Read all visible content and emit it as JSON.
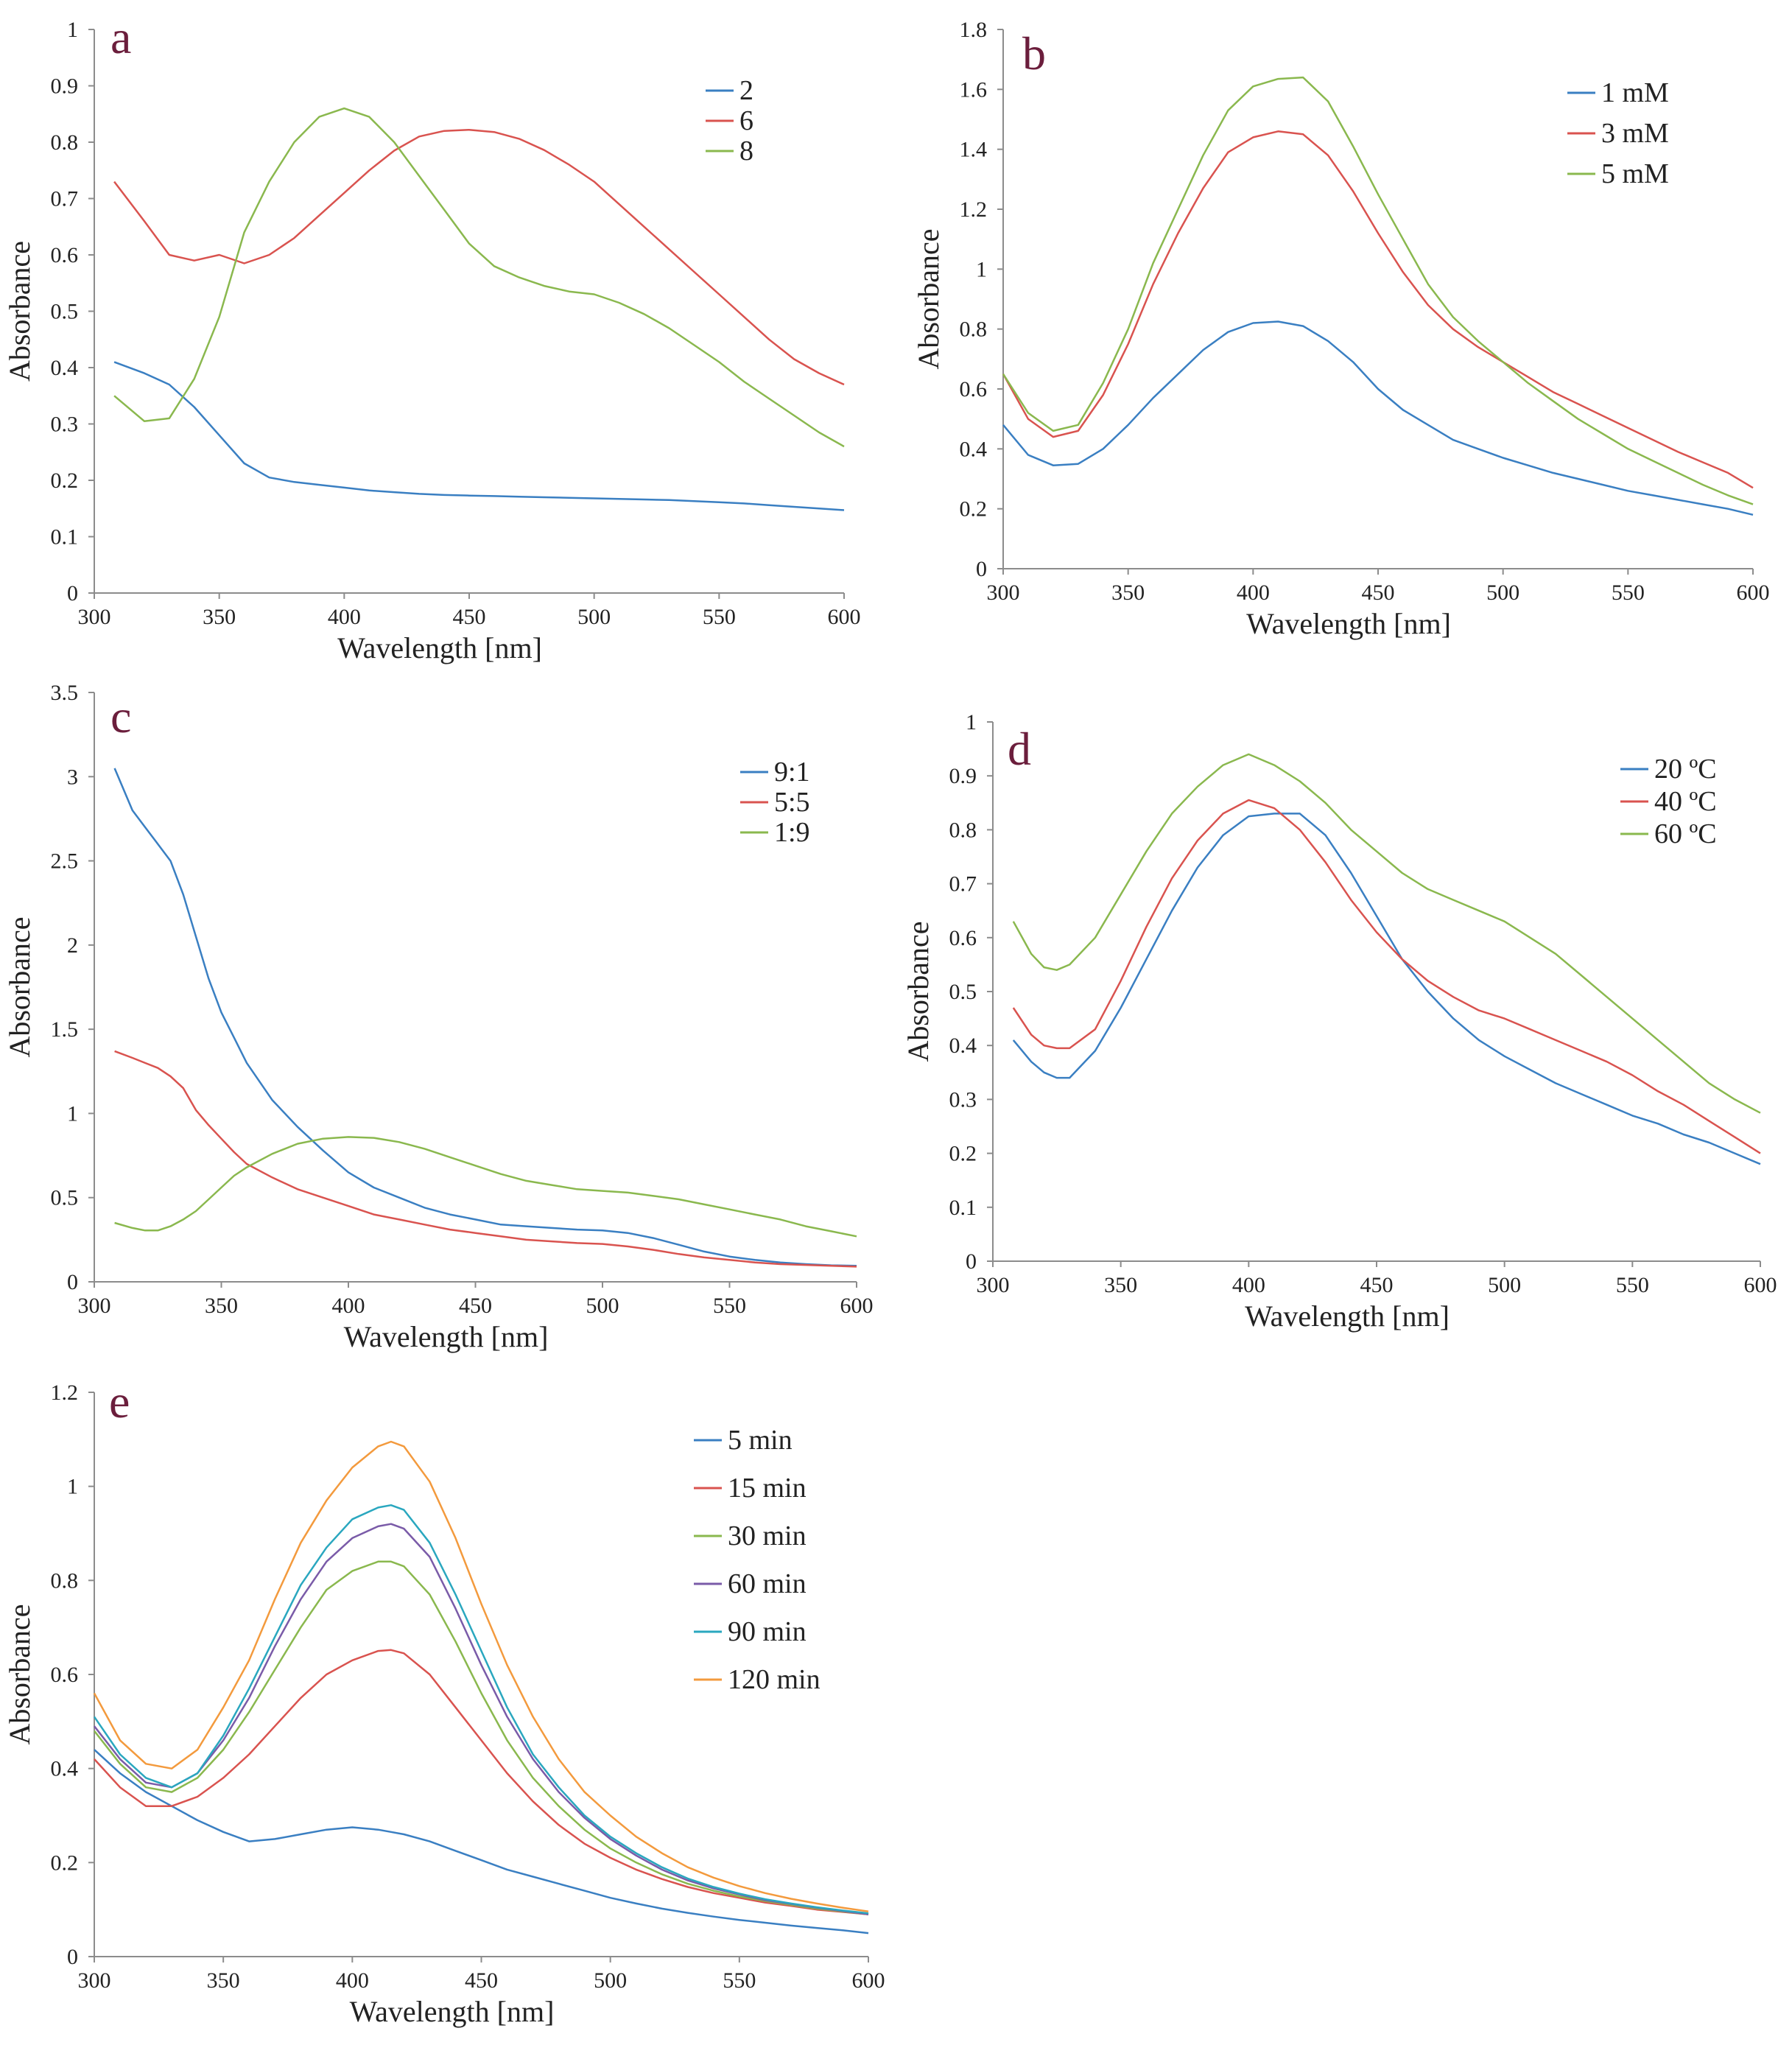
{
  "chart_data": [
    {
      "panel_label": "a",
      "type": "line",
      "xlabel": "Wavelength [nm]",
      "ylabel": "Absorbance",
      "xlim": [
        300,
        600
      ],
      "ylim": [
        0,
        1
      ],
      "xticks": [
        300,
        350,
        400,
        450,
        500,
        550,
        600
      ],
      "yticks": [
        0,
        0.1,
        0.2,
        0.3,
        0.4,
        0.5,
        0.6,
        0.7,
        0.8,
        0.9,
        1
      ],
      "ytick_labels": [
        "0",
        "0.1",
        "0.2",
        "0.3",
        "0.4",
        "0.5",
        "0.6",
        "0.7",
        "0.8",
        "0.9",
        "1"
      ],
      "x": [
        308,
        320,
        330,
        340,
        350,
        360,
        370,
        380,
        390,
        400,
        410,
        420,
        430,
        440,
        450,
        460,
        470,
        480,
        490,
        500,
        510,
        520,
        530,
        540,
        550,
        560,
        570,
        580,
        590,
        600
      ],
      "series": [
        {
          "name": "2",
          "color": "#3a7fc2",
          "values": [
            0.41,
            0.39,
            0.37,
            0.33,
            0.28,
            0.23,
            0.205,
            0.197,
            0.192,
            0.187,
            0.182,
            0.179,
            0.176,
            0.174,
            0.173,
            0.172,
            0.171,
            0.17,
            0.169,
            0.168,
            0.167,
            0.166,
            0.165,
            0.163,
            0.161,
            0.159,
            0.156,
            0.153,
            0.15,
            0.147
          ]
        },
        {
          "name": "6",
          "color": "#d9534f",
          "values": [
            0.73,
            0.66,
            0.6,
            0.59,
            0.6,
            0.585,
            0.6,
            0.63,
            0.67,
            0.71,
            0.75,
            0.785,
            0.81,
            0.82,
            0.822,
            0.818,
            0.806,
            0.786,
            0.76,
            0.73,
            0.69,
            0.65,
            0.61,
            0.57,
            0.53,
            0.49,
            0.45,
            0.415,
            0.39,
            0.37
          ]
        },
        {
          "name": "8",
          "color": "#8ab84e",
          "values": [
            0.35,
            0.305,
            0.31,
            0.38,
            0.49,
            0.64,
            0.73,
            0.8,
            0.845,
            0.86,
            0.845,
            0.8,
            0.74,
            0.68,
            0.62,
            0.58,
            0.56,
            0.545,
            0.535,
            0.53,
            0.515,
            0.495,
            0.47,
            0.44,
            0.41,
            0.375,
            0.345,
            0.315,
            0.285,
            0.26
          ]
        }
      ]
    },
    {
      "panel_label": "b",
      "type": "line",
      "xlabel": "Wavelength [nm]",
      "ylabel": "Absorbance",
      "xlim": [
        300,
        600
      ],
      "ylim": [
        0,
        1.8
      ],
      "xticks": [
        300,
        350,
        400,
        450,
        500,
        550,
        600
      ],
      "yticks": [
        0,
        0.2,
        0.4,
        0.6,
        0.8,
        1,
        1.2,
        1.4,
        1.6,
        1.8
      ],
      "ytick_labels": [
        "0",
        "0.2",
        "0.4",
        "0.6",
        "0.8",
        "1",
        "1.2",
        "1.4",
        "1.6",
        "1.8"
      ],
      "x": [
        300,
        310,
        320,
        330,
        340,
        350,
        360,
        370,
        380,
        390,
        400,
        410,
        420,
        430,
        440,
        450,
        460,
        470,
        480,
        490,
        500,
        510,
        520,
        530,
        540,
        550,
        560,
        570,
        580,
        590,
        600
      ],
      "series": [
        {
          "name": "1 mM",
          "color": "#3a7fc2",
          "values": [
            0.48,
            0.38,
            0.345,
            0.35,
            0.4,
            0.48,
            0.57,
            0.65,
            0.73,
            0.79,
            0.82,
            0.825,
            0.81,
            0.76,
            0.69,
            0.6,
            0.53,
            0.48,
            0.43,
            0.4,
            0.37,
            0.345,
            0.32,
            0.3,
            0.28,
            0.26,
            0.245,
            0.23,
            0.215,
            0.2,
            0.18
          ]
        },
        {
          "name": "3 mM",
          "color": "#d9534f",
          "values": [
            0.65,
            0.5,
            0.44,
            0.46,
            0.58,
            0.75,
            0.95,
            1.12,
            1.27,
            1.39,
            1.44,
            1.46,
            1.45,
            1.38,
            1.26,
            1.12,
            0.99,
            0.88,
            0.8,
            0.74,
            0.69,
            0.64,
            0.59,
            0.55,
            0.51,
            0.47,
            0.43,
            0.39,
            0.355,
            0.32,
            0.27
          ]
        },
        {
          "name": "5 mM",
          "color": "#8ab84e",
          "values": [
            0.65,
            0.52,
            0.46,
            0.48,
            0.62,
            0.8,
            1.02,
            1.2,
            1.38,
            1.53,
            1.61,
            1.635,
            1.64,
            1.56,
            1.41,
            1.25,
            1.1,
            0.95,
            0.84,
            0.76,
            0.69,
            0.62,
            0.56,
            0.5,
            0.45,
            0.4,
            0.36,
            0.32,
            0.28,
            0.245,
            0.215
          ]
        }
      ]
    },
    {
      "panel_label": "c",
      "type": "line",
      "xlabel": "Wavelength [nm]",
      "ylabel": "Absorbance",
      "xlim": [
        300,
        600
      ],
      "ylim": [
        0,
        3.5
      ],
      "xticks": [
        300,
        350,
        400,
        450,
        500,
        550,
        600
      ],
      "yticks": [
        0,
        0.5,
        1,
        1.5,
        2,
        2.5,
        3,
        3.5
      ],
      "ytick_labels": [
        "0",
        "0.5",
        "1",
        "1.5",
        "2",
        "2.5",
        "3",
        "3.5"
      ],
      "x": [
        308,
        315,
        320,
        325,
        330,
        335,
        340,
        345,
        350,
        355,
        360,
        370,
        380,
        390,
        400,
        410,
        420,
        430,
        440,
        450,
        460,
        470,
        480,
        490,
        500,
        510,
        520,
        530,
        540,
        550,
        560,
        570,
        580,
        590,
        600
      ],
      "series": [
        {
          "name": "9:1",
          "color": "#3a7fc2",
          "values": [
            3.05,
            2.8,
            2.7,
            2.6,
            2.5,
            2.3,
            2.05,
            1.8,
            1.6,
            1.45,
            1.3,
            1.08,
            0.92,
            0.78,
            0.65,
            0.56,
            0.5,
            0.44,
            0.4,
            0.37,
            0.34,
            0.33,
            0.32,
            0.31,
            0.305,
            0.29,
            0.26,
            0.22,
            0.18,
            0.15,
            0.13,
            0.115,
            0.105,
            0.098,
            0.095
          ]
        },
        {
          "name": "5:5",
          "color": "#d9534f",
          "values": [
            1.37,
            1.33,
            1.3,
            1.27,
            1.22,
            1.15,
            1.02,
            0.93,
            0.85,
            0.77,
            0.7,
            0.62,
            0.55,
            0.5,
            0.45,
            0.4,
            0.37,
            0.34,
            0.31,
            0.29,
            0.27,
            0.25,
            0.24,
            0.23,
            0.225,
            0.21,
            0.19,
            0.165,
            0.145,
            0.13,
            0.115,
            0.105,
            0.1,
            0.095,
            0.09
          ]
        },
        {
          "name": "1:9",
          "color": "#8ab84e",
          "values": [
            0.35,
            0.32,
            0.305,
            0.305,
            0.33,
            0.37,
            0.42,
            0.49,
            0.56,
            0.63,
            0.68,
            0.76,
            0.82,
            0.85,
            0.86,
            0.855,
            0.83,
            0.79,
            0.74,
            0.69,
            0.64,
            0.6,
            0.575,
            0.55,
            0.54,
            0.53,
            0.51,
            0.49,
            0.46,
            0.43,
            0.4,
            0.37,
            0.33,
            0.3,
            0.27
          ]
        }
      ]
    },
    {
      "panel_label": "d",
      "type": "line",
      "xlabel": "Wavelength [nm]",
      "ylabel": "Absorbance",
      "xlim": [
        300,
        600
      ],
      "ylim": [
        0,
        1
      ],
      "xticks": [
        300,
        350,
        400,
        450,
        500,
        550,
        600
      ],
      "yticks": [
        0,
        0.1,
        0.2,
        0.3,
        0.4,
        0.5,
        0.6,
        0.7,
        0.8,
        0.9,
        1
      ],
      "ytick_labels": [
        "0",
        "0.1",
        "0.2",
        "0.3",
        "0.4",
        "0.5",
        "0.6",
        "0.7",
        "0.8",
        "0.9",
        "1"
      ],
      "x": [
        308,
        315,
        320,
        325,
        330,
        340,
        350,
        360,
        370,
        380,
        390,
        400,
        410,
        420,
        430,
        440,
        450,
        460,
        470,
        480,
        490,
        500,
        510,
        520,
        530,
        540,
        550,
        560,
        570,
        580,
        590,
        600
      ],
      "series": [
        {
          "name": "20 ºC",
          "color": "#3a7fc2",
          "values": [
            0.41,
            0.37,
            0.35,
            0.34,
            0.34,
            0.39,
            0.47,
            0.56,
            0.65,
            0.73,
            0.79,
            0.825,
            0.83,
            0.83,
            0.79,
            0.72,
            0.64,
            0.56,
            0.5,
            0.45,
            0.41,
            0.38,
            0.355,
            0.33,
            0.31,
            0.29,
            0.27,
            0.255,
            0.235,
            0.22,
            0.2,
            0.18
          ]
        },
        {
          "name": "40 ºC",
          "color": "#d9534f",
          "values": [
            0.47,
            0.42,
            0.4,
            0.395,
            0.395,
            0.43,
            0.52,
            0.62,
            0.71,
            0.78,
            0.83,
            0.855,
            0.84,
            0.8,
            0.74,
            0.67,
            0.61,
            0.56,
            0.52,
            0.49,
            0.465,
            0.45,
            0.43,
            0.41,
            0.39,
            0.37,
            0.345,
            0.315,
            0.29,
            0.26,
            0.23,
            0.2
          ]
        },
        {
          "name": "60 ºC",
          "color": "#8ab84e",
          "values": [
            0.63,
            0.57,
            0.545,
            0.54,
            0.55,
            0.6,
            0.68,
            0.76,
            0.83,
            0.88,
            0.92,
            0.94,
            0.92,
            0.89,
            0.85,
            0.8,
            0.76,
            0.72,
            0.69,
            0.67,
            0.65,
            0.63,
            0.6,
            0.57,
            0.53,
            0.49,
            0.45,
            0.41,
            0.37,
            0.33,
            0.3,
            0.275
          ]
        }
      ]
    },
    {
      "panel_label": "e",
      "type": "line",
      "xlabel": "Wavelength [nm]",
      "ylabel": "Absorbance",
      "xlim": [
        300,
        600
      ],
      "ylim": [
        0,
        1.2
      ],
      "xticks": [
        300,
        350,
        400,
        450,
        500,
        550,
        600
      ],
      "yticks": [
        0,
        0.2,
        0.4,
        0.6,
        0.8,
        1,
        1.2
      ],
      "ytick_labels": [
        "0",
        "0.2",
        "0.4",
        "0.6",
        "0.8",
        "1",
        "1.2"
      ],
      "x": [
        300,
        310,
        320,
        330,
        340,
        350,
        360,
        370,
        380,
        390,
        400,
        410,
        415,
        420,
        430,
        440,
        450,
        460,
        470,
        480,
        490,
        500,
        510,
        520,
        530,
        540,
        550,
        560,
        570,
        580,
        590,
        600
      ],
      "series": [
        {
          "name": "5 min",
          "color": "#3a7fc2",
          "values": [
            0.44,
            0.39,
            0.35,
            0.32,
            0.29,
            0.265,
            0.245,
            0.25,
            0.26,
            0.27,
            0.275,
            0.27,
            0.265,
            0.26,
            0.245,
            0.225,
            0.205,
            0.185,
            0.17,
            0.155,
            0.14,
            0.125,
            0.113,
            0.102,
            0.093,
            0.085,
            0.078,
            0.072,
            0.066,
            0.061,
            0.056,
            0.05
          ]
        },
        {
          "name": "15 min",
          "color": "#d9534f",
          "values": [
            0.42,
            0.36,
            0.32,
            0.32,
            0.34,
            0.38,
            0.43,
            0.49,
            0.55,
            0.6,
            0.63,
            0.65,
            0.652,
            0.645,
            0.6,
            0.53,
            0.46,
            0.39,
            0.33,
            0.28,
            0.24,
            0.21,
            0.185,
            0.165,
            0.148,
            0.135,
            0.125,
            0.115,
            0.108,
            0.1,
            0.095,
            0.09
          ]
        },
        {
          "name": "30 min",
          "color": "#8ab84e",
          "values": [
            0.48,
            0.41,
            0.36,
            0.35,
            0.38,
            0.44,
            0.52,
            0.61,
            0.7,
            0.78,
            0.82,
            0.84,
            0.84,
            0.83,
            0.77,
            0.67,
            0.56,
            0.46,
            0.38,
            0.32,
            0.27,
            0.23,
            0.2,
            0.175,
            0.155,
            0.14,
            0.128,
            0.118,
            0.11,
            0.102,
            0.096,
            0.09
          ]
        },
        {
          "name": "60 min",
          "color": "#7a5ba8",
          "values": [
            0.49,
            0.42,
            0.37,
            0.36,
            0.39,
            0.46,
            0.55,
            0.66,
            0.76,
            0.84,
            0.89,
            0.915,
            0.92,
            0.91,
            0.85,
            0.74,
            0.62,
            0.51,
            0.42,
            0.35,
            0.295,
            0.25,
            0.215,
            0.185,
            0.162,
            0.145,
            0.132,
            0.12,
            0.112,
            0.104,
            0.097,
            0.09
          ]
        },
        {
          "name": "90 min",
          "color": "#2aa7bf",
          "values": [
            0.51,
            0.43,
            0.38,
            0.36,
            0.39,
            0.47,
            0.57,
            0.68,
            0.79,
            0.87,
            0.93,
            0.955,
            0.96,
            0.95,
            0.88,
            0.77,
            0.65,
            0.53,
            0.43,
            0.36,
            0.3,
            0.255,
            0.22,
            0.19,
            0.166,
            0.148,
            0.134,
            0.122,
            0.113,
            0.105,
            0.098,
            0.092
          ]
        },
        {
          "name": "120 min",
          "color": "#f39a3d",
          "values": [
            0.56,
            0.46,
            0.41,
            0.4,
            0.44,
            0.53,
            0.63,
            0.76,
            0.88,
            0.97,
            1.04,
            1.085,
            1.095,
            1.085,
            1.01,
            0.89,
            0.75,
            0.62,
            0.51,
            0.42,
            0.35,
            0.3,
            0.255,
            0.22,
            0.19,
            0.168,
            0.15,
            0.135,
            0.123,
            0.113,
            0.104,
            0.096
          ]
        }
      ]
    }
  ]
}
